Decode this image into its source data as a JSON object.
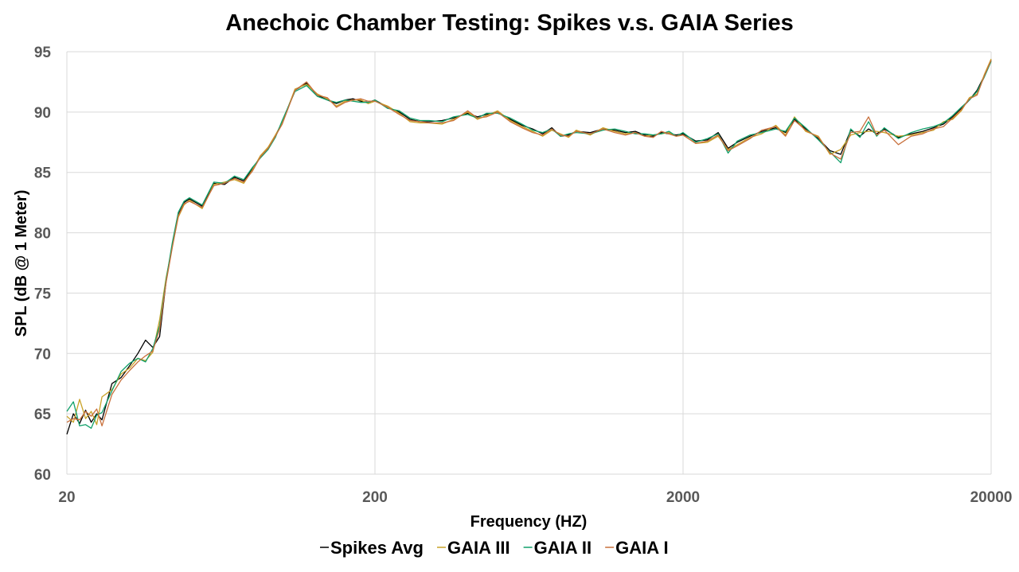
{
  "chart_data": {
    "type": "line",
    "title": "Anechoic Chamber Testing: Spikes v.s. GAIA Series",
    "xlabel": "Frequency (HZ)",
    "ylabel": "SPL (dB @ 1 Meter)",
    "x_scale": "log",
    "xlim": [
      20,
      20000
    ],
    "ylim": [
      60,
      95
    ],
    "x_ticks": [
      "20",
      "200",
      "2000",
      "20000"
    ],
    "y_ticks": [
      "60",
      "65",
      "70",
      "75",
      "80",
      "85",
      "90",
      "95"
    ],
    "grid": true,
    "legend_position": "bottom",
    "x": [
      20,
      21,
      22,
      23,
      24,
      25,
      26,
      28,
      30,
      32,
      34,
      36,
      38,
      40,
      42,
      44,
      46,
      48,
      50,
      55,
      60,
      65,
      70,
      75,
      80,
      85,
      90,
      95,
      100,
      110,
      120,
      130,
      140,
      150,
      160,
      170,
      180,
      190,
      200,
      220,
      240,
      260,
      280,
      300,
      330,
      360,
      400,
      430,
      460,
      500,
      550,
      600,
      650,
      700,
      750,
      800,
      850,
      900,
      1000,
      1100,
      1200,
      1300,
      1400,
      1500,
      1600,
      1700,
      1800,
      1900,
      2000,
      2200,
      2400,
      2600,
      2800,
      3000,
      3300,
      3600,
      4000,
      4300,
      4600,
      5000,
      5500,
      6000,
      6500,
      7000,
      7500,
      8000,
      8500,
      9000,
      10000,
      11000,
      12000,
      13000,
      14000,
      15000,
      16000,
      17000,
      18000,
      19000,
      20000
    ],
    "series": [
      {
        "name": "Spikes Avg",
        "color": "#000000",
        "values": [
          63.3,
          65.0,
          64.2,
          65.3,
          64.3,
          65.0,
          64.5,
          67.5,
          68.0,
          69.0,
          70.0,
          71.1,
          70.5,
          71.4,
          76.0,
          79.0,
          81.5,
          82.5,
          82.8,
          82.2,
          84.1,
          84.0,
          84.6,
          84.3,
          85.3,
          86.3,
          87.0,
          88.0,
          89.2,
          91.8,
          92.4,
          91.4,
          91.0,
          90.7,
          91.0,
          91.1,
          90.9,
          90.8,
          91.0,
          90.4,
          90.0,
          89.4,
          89.2,
          89.2,
          89.3,
          89.5,
          89.9,
          89.6,
          89.8,
          90.0,
          89.4,
          88.9,
          88.6,
          88.2,
          88.7,
          88.0,
          88.1,
          88.4,
          88.3,
          88.6,
          88.5,
          88.3,
          88.4,
          88.1,
          88.0,
          88.3,
          88.2,
          88.1,
          88.2,
          87.6,
          87.7,
          88.3,
          87.0,
          87.5,
          88.0,
          88.4,
          88.7,
          88.3,
          89.4,
          88.6,
          87.8,
          86.8,
          86.5,
          88.5,
          88.0,
          88.6,
          88.2,
          88.6,
          87.9,
          88.2,
          88.4,
          88.7,
          89.0,
          89.6,
          90.3,
          91.0,
          91.8,
          93.0,
          94.3
        ]
      },
      {
        "name": "GAIA III",
        "color": "#c9a227",
        "values": [
          64.8,
          64.3,
          66.2,
          64.6,
          65.2,
          64.1,
          66.4,
          67.0,
          68.3,
          68.8,
          69.6,
          69.4,
          70.1,
          72.8,
          76.3,
          78.9,
          81.3,
          82.3,
          82.7,
          82.0,
          84.0,
          84.2,
          84.4,
          84.1,
          85.2,
          86.4,
          87.1,
          88.1,
          89.1,
          91.9,
          92.3,
          91.5,
          91.1,
          90.5,
          90.9,
          91.0,
          91.0,
          90.7,
          90.9,
          90.5,
          89.9,
          89.2,
          89.1,
          89.1,
          89.0,
          89.4,
          90.0,
          89.4,
          89.7,
          90.1,
          89.3,
          88.8,
          88.4,
          88.0,
          88.5,
          88.2,
          87.9,
          88.5,
          88.1,
          88.7,
          88.4,
          88.2,
          88.3,
          88.0,
          88.1,
          88.2,
          88.3,
          88.0,
          88.1,
          87.4,
          87.5,
          88.0,
          86.9,
          87.3,
          87.9,
          88.2,
          88.9,
          88.1,
          89.6,
          88.4,
          88.0,
          86.5,
          86.9,
          88.1,
          88.3,
          88.4,
          88.4,
          88.3,
          88.0,
          88.1,
          88.3,
          88.5,
          89.2,
          89.4,
          90.1,
          91.2,
          91.5,
          93.1,
          94.4
        ]
      },
      {
        "name": "GAIA II",
        "color": "#11a06a",
        "values": [
          65.2,
          66.0,
          64.0,
          64.1,
          63.8,
          64.9,
          65.1,
          66.9,
          68.5,
          69.2,
          69.6,
          69.3,
          70.4,
          72.3,
          76.1,
          79.2,
          81.7,
          82.6,
          82.9,
          82.3,
          84.2,
          84.1,
          84.7,
          84.4,
          85.4,
          86.2,
          86.9,
          87.9,
          89.3,
          91.7,
          92.2,
          91.3,
          91.0,
          90.8,
          91.0,
          90.9,
          90.8,
          90.8,
          91.0,
          90.3,
          90.1,
          89.5,
          89.3,
          89.3,
          89.2,
          89.6,
          89.8,
          89.5,
          89.9,
          89.9,
          89.5,
          89.0,
          88.5,
          88.3,
          88.6,
          88.0,
          88.2,
          88.3,
          88.2,
          88.5,
          88.6,
          88.4,
          88.2,
          88.2,
          88.1,
          88.2,
          88.4,
          88.0,
          88.3,
          87.5,
          87.8,
          88.2,
          86.6,
          87.6,
          88.1,
          88.3,
          88.6,
          88.4,
          89.5,
          88.7,
          87.7,
          86.7,
          85.8,
          88.6,
          87.9,
          89.2,
          88.0,
          88.7,
          87.8,
          88.3,
          88.6,
          88.8,
          89.1,
          89.7,
          90.4,
          91.0,
          91.7,
          92.9,
          94.2
        ]
      },
      {
        "name": "GAIA I",
        "color": "#c8703c",
        "values": [
          64.3,
          64.6,
          64.5,
          65.2,
          64.8,
          65.4,
          64.0,
          66.6,
          67.8,
          68.6,
          69.3,
          69.8,
          70.2,
          72.0,
          75.9,
          78.8,
          81.4,
          82.4,
          82.6,
          82.1,
          83.9,
          84.1,
          84.5,
          84.2,
          85.1,
          86.3,
          87.0,
          88.0,
          89.0,
          91.8,
          92.5,
          91.4,
          91.2,
          90.4,
          90.8,
          91.0,
          91.1,
          90.9,
          90.9,
          90.4,
          89.8,
          89.3,
          89.2,
          89.1,
          89.1,
          89.3,
          90.1,
          89.5,
          89.6,
          90.0,
          89.2,
          88.7,
          88.3,
          88.1,
          88.6,
          88.1,
          88.0,
          88.4,
          88.2,
          88.6,
          88.3,
          88.1,
          88.3,
          88.0,
          87.9,
          88.4,
          88.2,
          88.0,
          88.1,
          87.4,
          87.6,
          88.1,
          86.8,
          87.2,
          87.8,
          88.5,
          88.8,
          88.0,
          89.3,
          88.5,
          87.9,
          86.6,
          86.1,
          88.3,
          88.4,
          89.6,
          88.1,
          88.5,
          87.3,
          88.0,
          88.2,
          88.6,
          88.8,
          89.5,
          90.2,
          91.1,
          91.4,
          93.0,
          94.3
        ]
      }
    ]
  }
}
